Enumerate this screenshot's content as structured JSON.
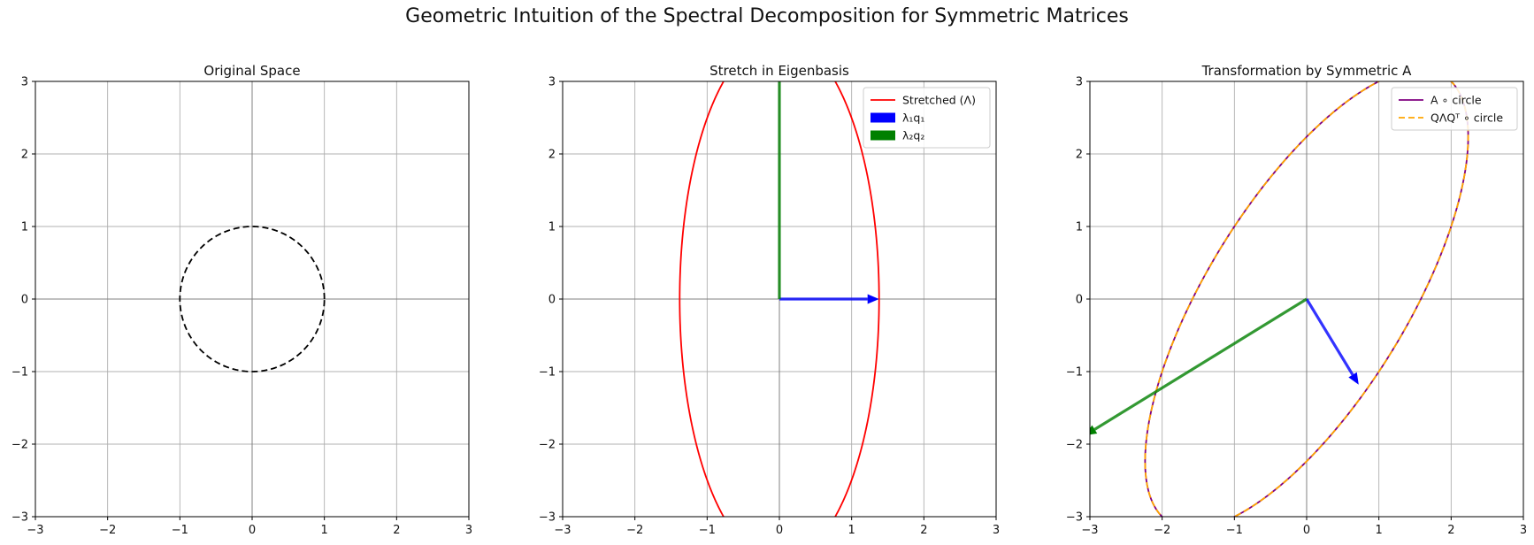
{
  "figure": {
    "suptitle": "Geometric Intuition of the Spectral Decomposition for Symmetric Matrices"
  },
  "chart_data": [
    {
      "type": "line",
      "title": "Original Space",
      "xlim": [
        -3,
        3
      ],
      "ylim": [
        -3,
        3
      ],
      "xticks": [
        -3,
        -2,
        -1,
        0,
        1,
        2,
        3
      ],
      "yticks": [
        -3,
        -2,
        -1,
        0,
        1,
        2,
        3
      ],
      "grid": true,
      "legend": null,
      "series": [
        {
          "kind": "parametric",
          "x_expr": "cos(t)",
          "y_expr": "sin(t)",
          "color": "#000000",
          "dash": "dashed"
        }
      ],
      "vectors": []
    },
    {
      "type": "line",
      "title": "Stretch in Eigenbasis",
      "xlim": [
        -3,
        3
      ],
      "ylim": [
        -3,
        3
      ],
      "xticks": [
        -3,
        -2,
        -1,
        0,
        1,
        2,
        3
      ],
      "yticks": [
        -3,
        -2,
        -1,
        0,
        1,
        2,
        3
      ],
      "grid": true,
      "legend": "top-right",
      "series": [
        {
          "name": "Stretched (Λ)",
          "kind": "ellipse",
          "rx": 1.38,
          "ry": 3.62,
          "color": "#ff0000",
          "dash": "solid"
        }
      ],
      "vectors": [
        {
          "name": "λ₁q₁",
          "x": 1.38,
          "y": 0,
          "color": "#0000ff"
        },
        {
          "name": "λ₂q₂",
          "x": 0,
          "y": 3.62,
          "color": "#008000"
        }
      ]
    },
    {
      "type": "line",
      "title": "Transformation by Symmetric A",
      "xlim": [
        -3,
        3
      ],
      "ylim": [
        -3,
        3
      ],
      "xticks": [
        -3,
        -2,
        -1,
        0,
        1,
        2,
        3
      ],
      "yticks": [
        -3,
        -2,
        -1,
        0,
        1,
        2,
        3
      ],
      "grid": true,
      "legend": "top-right",
      "matrix_A": [
        [
          2,
          1
        ],
        [
          1,
          3
        ]
      ],
      "series": [
        {
          "name": "A ∘ circle",
          "kind": "matrix",
          "color": "#800080",
          "dash": "solid"
        },
        {
          "name": "QΛQᵀ ∘ circle",
          "kind": "matrix",
          "color": "#ffa500",
          "dash": "dashed"
        }
      ],
      "vectors": [
        {
          "x": 0.72,
          "y": -1.18,
          "color": "#0000ff"
        },
        {
          "x": -3.07,
          "y": -1.88,
          "color": "#008000"
        }
      ]
    }
  ]
}
